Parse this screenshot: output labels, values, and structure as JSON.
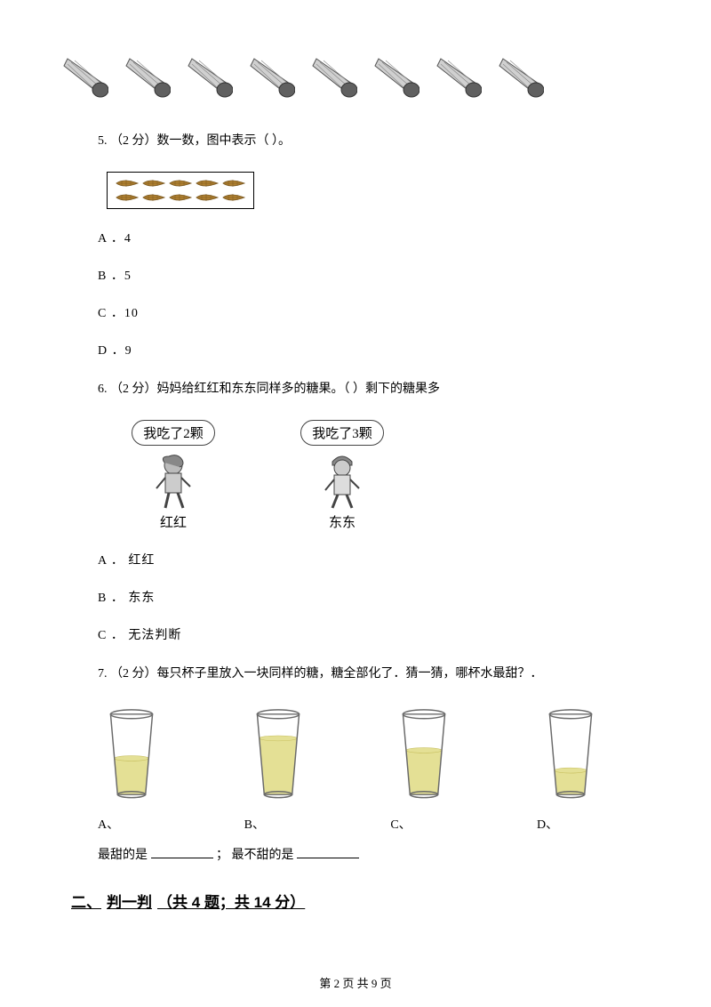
{
  "shuttlecock_row": {
    "count": 8,
    "color_cap": "#606060",
    "color_feather": "#d0d0d0"
  },
  "q5": {
    "text": "5.  （2 分）数一数，图中表示（       ）。",
    "wheat": {
      "rows": 2,
      "cols": 5,
      "color": "#b08030"
    },
    "choices": {
      "a": "A ．4",
      "b": "B ．5",
      "c": "C ．10",
      "d": "D ．9"
    }
  },
  "q6": {
    "text": "6.  （2 分）妈妈给红红和东东同样多的糖果。（      ）剩下的糖果多",
    "child1": {
      "bubble": "我吃了2颗",
      "name": "红红"
    },
    "child2": {
      "bubble": "我吃了3颗",
      "name": "东东"
    },
    "choices": {
      "a": "A ． 红红",
      "b": "B ． 东东",
      "c": "C ． 无法判断"
    }
  },
  "q7": {
    "text": "7.  （2 分）每只杯子里放入一块同样的糖，糖全部化了．猜一猜，哪杯水最甜？．",
    "cups": [
      {
        "label": "A、",
        "fill": 0.45
      },
      {
        "label": "B、",
        "fill": 0.7
      },
      {
        "label": "C、",
        "fill": 0.55
      },
      {
        "label": "D、",
        "fill": 0.3
      }
    ],
    "cup_water_color": "#e4e095",
    "cup_border_color": "#6a6a6a",
    "fill_text_prefix": "最甜的是",
    "fill_text_mid": "；  最不甜的是"
  },
  "section2": {
    "title_prefix": "二、",
    "title_main": "判一判",
    "title_suffix": "（共 4 题；共 14 分）"
  },
  "footer": "第 2 页 共 9 页"
}
